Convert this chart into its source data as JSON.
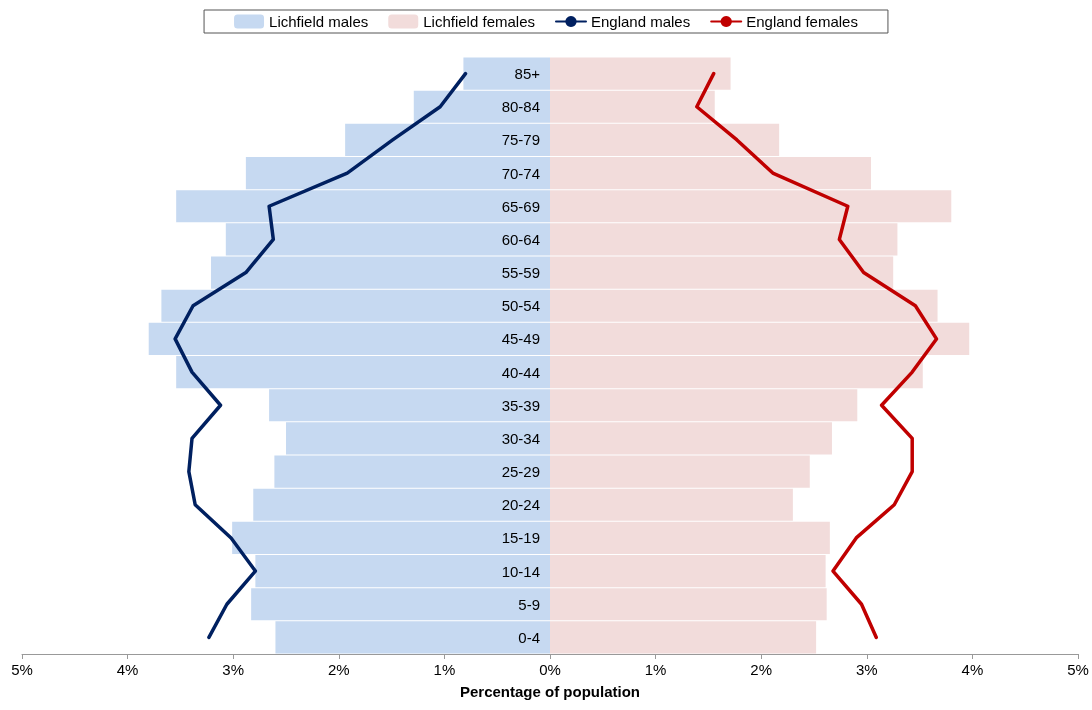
{
  "chart_data": {
    "type": "bar",
    "orientation": "horizontal",
    "xlabel": "Percentage of population",
    "categories": [
      "85+",
      "80-84",
      "75-79",
      "70-74",
      "65-69",
      "60-64",
      "55-59",
      "50-54",
      "45-49",
      "40-44",
      "35-39",
      "30-34",
      "25-29",
      "20-24",
      "15-19",
      "10-14",
      "5-9",
      "0-4"
    ],
    "series": [
      {
        "name": "Lichfield males",
        "color": "#c6d9f1",
        "values": [
          -0.82,
          -1.29,
          -1.94,
          -2.88,
          -3.54,
          -3.07,
          -3.21,
          -3.68,
          -3.8,
          -3.54,
          -2.66,
          -2.5,
          -2.61,
          -2.81,
          -3.01,
          -2.79,
          -2.83,
          -2.6
        ]
      },
      {
        "name": "Lichfield females",
        "color": "#f2dcdb",
        "values": [
          1.71,
          1.56,
          2.17,
          3.04,
          3.8,
          3.29,
          3.25,
          3.67,
          3.97,
          3.53,
          2.91,
          2.67,
          2.46,
          2.3,
          2.65,
          2.61,
          2.62,
          2.52
        ]
      },
      {
        "name": "England males",
        "type": "line",
        "color": "#002060",
        "marker": "none",
        "line_style": "solid",
        "values": [
          -0.8,
          -1.04,
          -1.49,
          -1.92,
          -2.66,
          -2.62,
          -2.88,
          -3.38,
          -3.55,
          -3.39,
          -3.12,
          -3.39,
          -3.42,
          -3.36,
          -3.02,
          -2.79,
          -3.06,
          -3.23
        ]
      },
      {
        "name": "England females",
        "type": "line",
        "color": "#c00000",
        "marker": "none",
        "line_style": "solid",
        "values": [
          1.55,
          1.39,
          1.77,
          2.11,
          2.82,
          2.74,
          2.97,
          3.46,
          3.66,
          3.43,
          3.14,
          3.43,
          3.43,
          3.26,
          2.9,
          2.68,
          2.95,
          3.09
        ]
      }
    ],
    "xlim": [
      -5,
      5
    ],
    "xticks": [
      {
        "value": -5,
        "label": "5%"
      },
      {
        "value": -4,
        "label": "4%"
      },
      {
        "value": -3,
        "label": "3%"
      },
      {
        "value": -2,
        "label": "2%"
      },
      {
        "value": -1,
        "label": "1%"
      },
      {
        "value": 0,
        "label": "0%"
      },
      {
        "value": 1,
        "label": "1%"
      },
      {
        "value": 2,
        "label": "2%"
      },
      {
        "value": 3,
        "label": "3%"
      },
      {
        "value": 4,
        "label": "4%"
      },
      {
        "value": 5,
        "label": "5%"
      }
    ],
    "legend": "top",
    "stacked": true
  }
}
